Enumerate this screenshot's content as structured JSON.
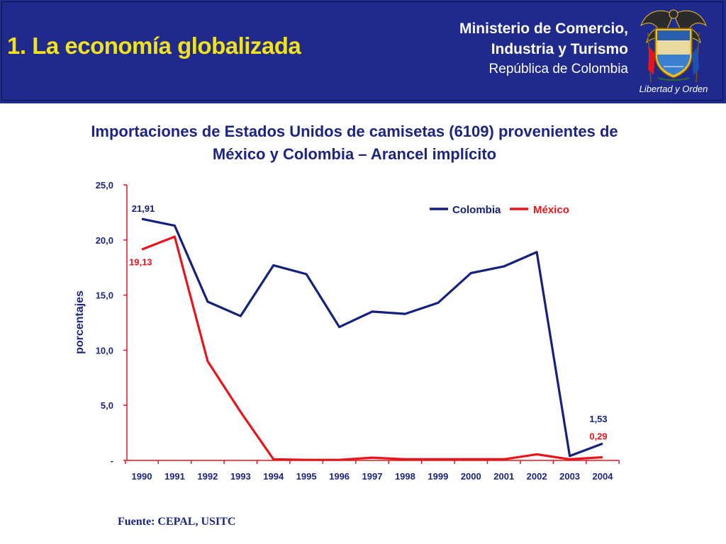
{
  "header": {
    "slide_title": "1. La economía globalizada",
    "ministry_line1": "Ministerio de Comercio,",
    "ministry_line2": "Industria y Turismo",
    "ministry_line3": "República de Colombia",
    "crest_motto": "Libertad y Orden"
  },
  "chart_data": {
    "type": "line",
    "title_line1": "Importaciones de Estados Unidos de camisetas (6109) provenientes de",
    "title_line2": "México y Colombia – Arancel implícito",
    "ylabel": "porcentajes",
    "ylim": [
      0,
      25
    ],
    "y_ticks": [
      "-",
      "5,0",
      "10,0",
      "15,0",
      "20,0",
      "25,0"
    ],
    "y_tick_values": [
      0,
      5,
      10,
      15,
      20,
      25
    ],
    "categories": [
      "1990",
      "1991",
      "1992",
      "1993",
      "1994",
      "1995",
      "1996",
      "1997",
      "1998",
      "1999",
      "2000",
      "2001",
      "2002",
      "2003",
      "2004"
    ],
    "legend_position": "top-right",
    "grid": false,
    "series": [
      {
        "name": "Colombia",
        "color": "#14207e",
        "values": [
          21.91,
          21.3,
          14.4,
          13.1,
          17.7,
          16.9,
          12.1,
          13.5,
          13.3,
          14.3,
          17.0,
          17.6,
          18.9,
          0.4,
          1.53
        ],
        "labels": [
          {
            "index": 0,
            "text": "21,91"
          },
          {
            "index": 14,
            "text": "1,53"
          }
        ]
      },
      {
        "name": "México",
        "color": "#e8141c",
        "values": [
          19.13,
          20.3,
          9.0,
          4.4,
          0.1,
          0.05,
          0.05,
          0.25,
          0.1,
          0.1,
          0.1,
          0.1,
          0.55,
          0.1,
          0.29
        ],
        "labels": [
          {
            "index": 0,
            "text": "19,13"
          },
          {
            "index": 14,
            "text": "0,29"
          }
        ]
      }
    ]
  },
  "source": "Fuente: CEPAL, USITC"
}
